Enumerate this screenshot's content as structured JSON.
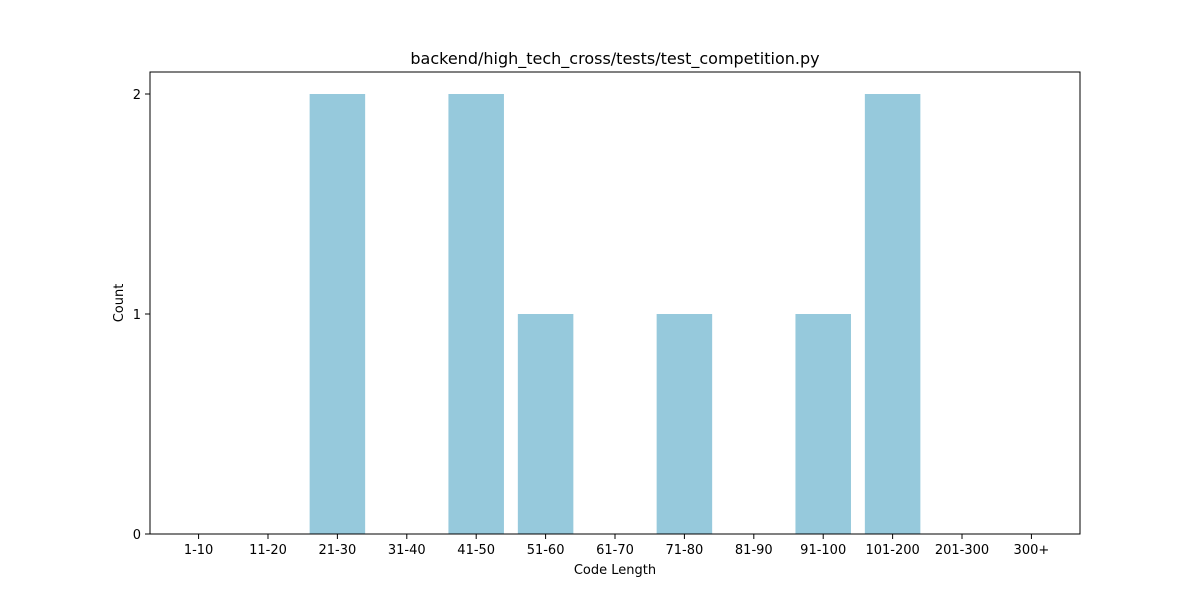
{
  "chart_data": {
    "type": "bar",
    "title": "backend/high_tech_cross/tests/test_competition.py",
    "xlabel": "Code Length",
    "ylabel": "Count",
    "categories": [
      "1-10",
      "11-20",
      "21-30",
      "31-40",
      "41-50",
      "51-60",
      "61-70",
      "71-80",
      "81-90",
      "91-100",
      "101-200",
      "201-300",
      "300+"
    ],
    "values": [
      0,
      0,
      2,
      0,
      2,
      1,
      0,
      1,
      0,
      1,
      2,
      0,
      0
    ],
    "ylim": [
      0,
      2.1
    ],
    "yticks": [
      0,
      1,
      2
    ],
    "bar_color": "#96c9dc",
    "grid": false,
    "legend": "none"
  }
}
